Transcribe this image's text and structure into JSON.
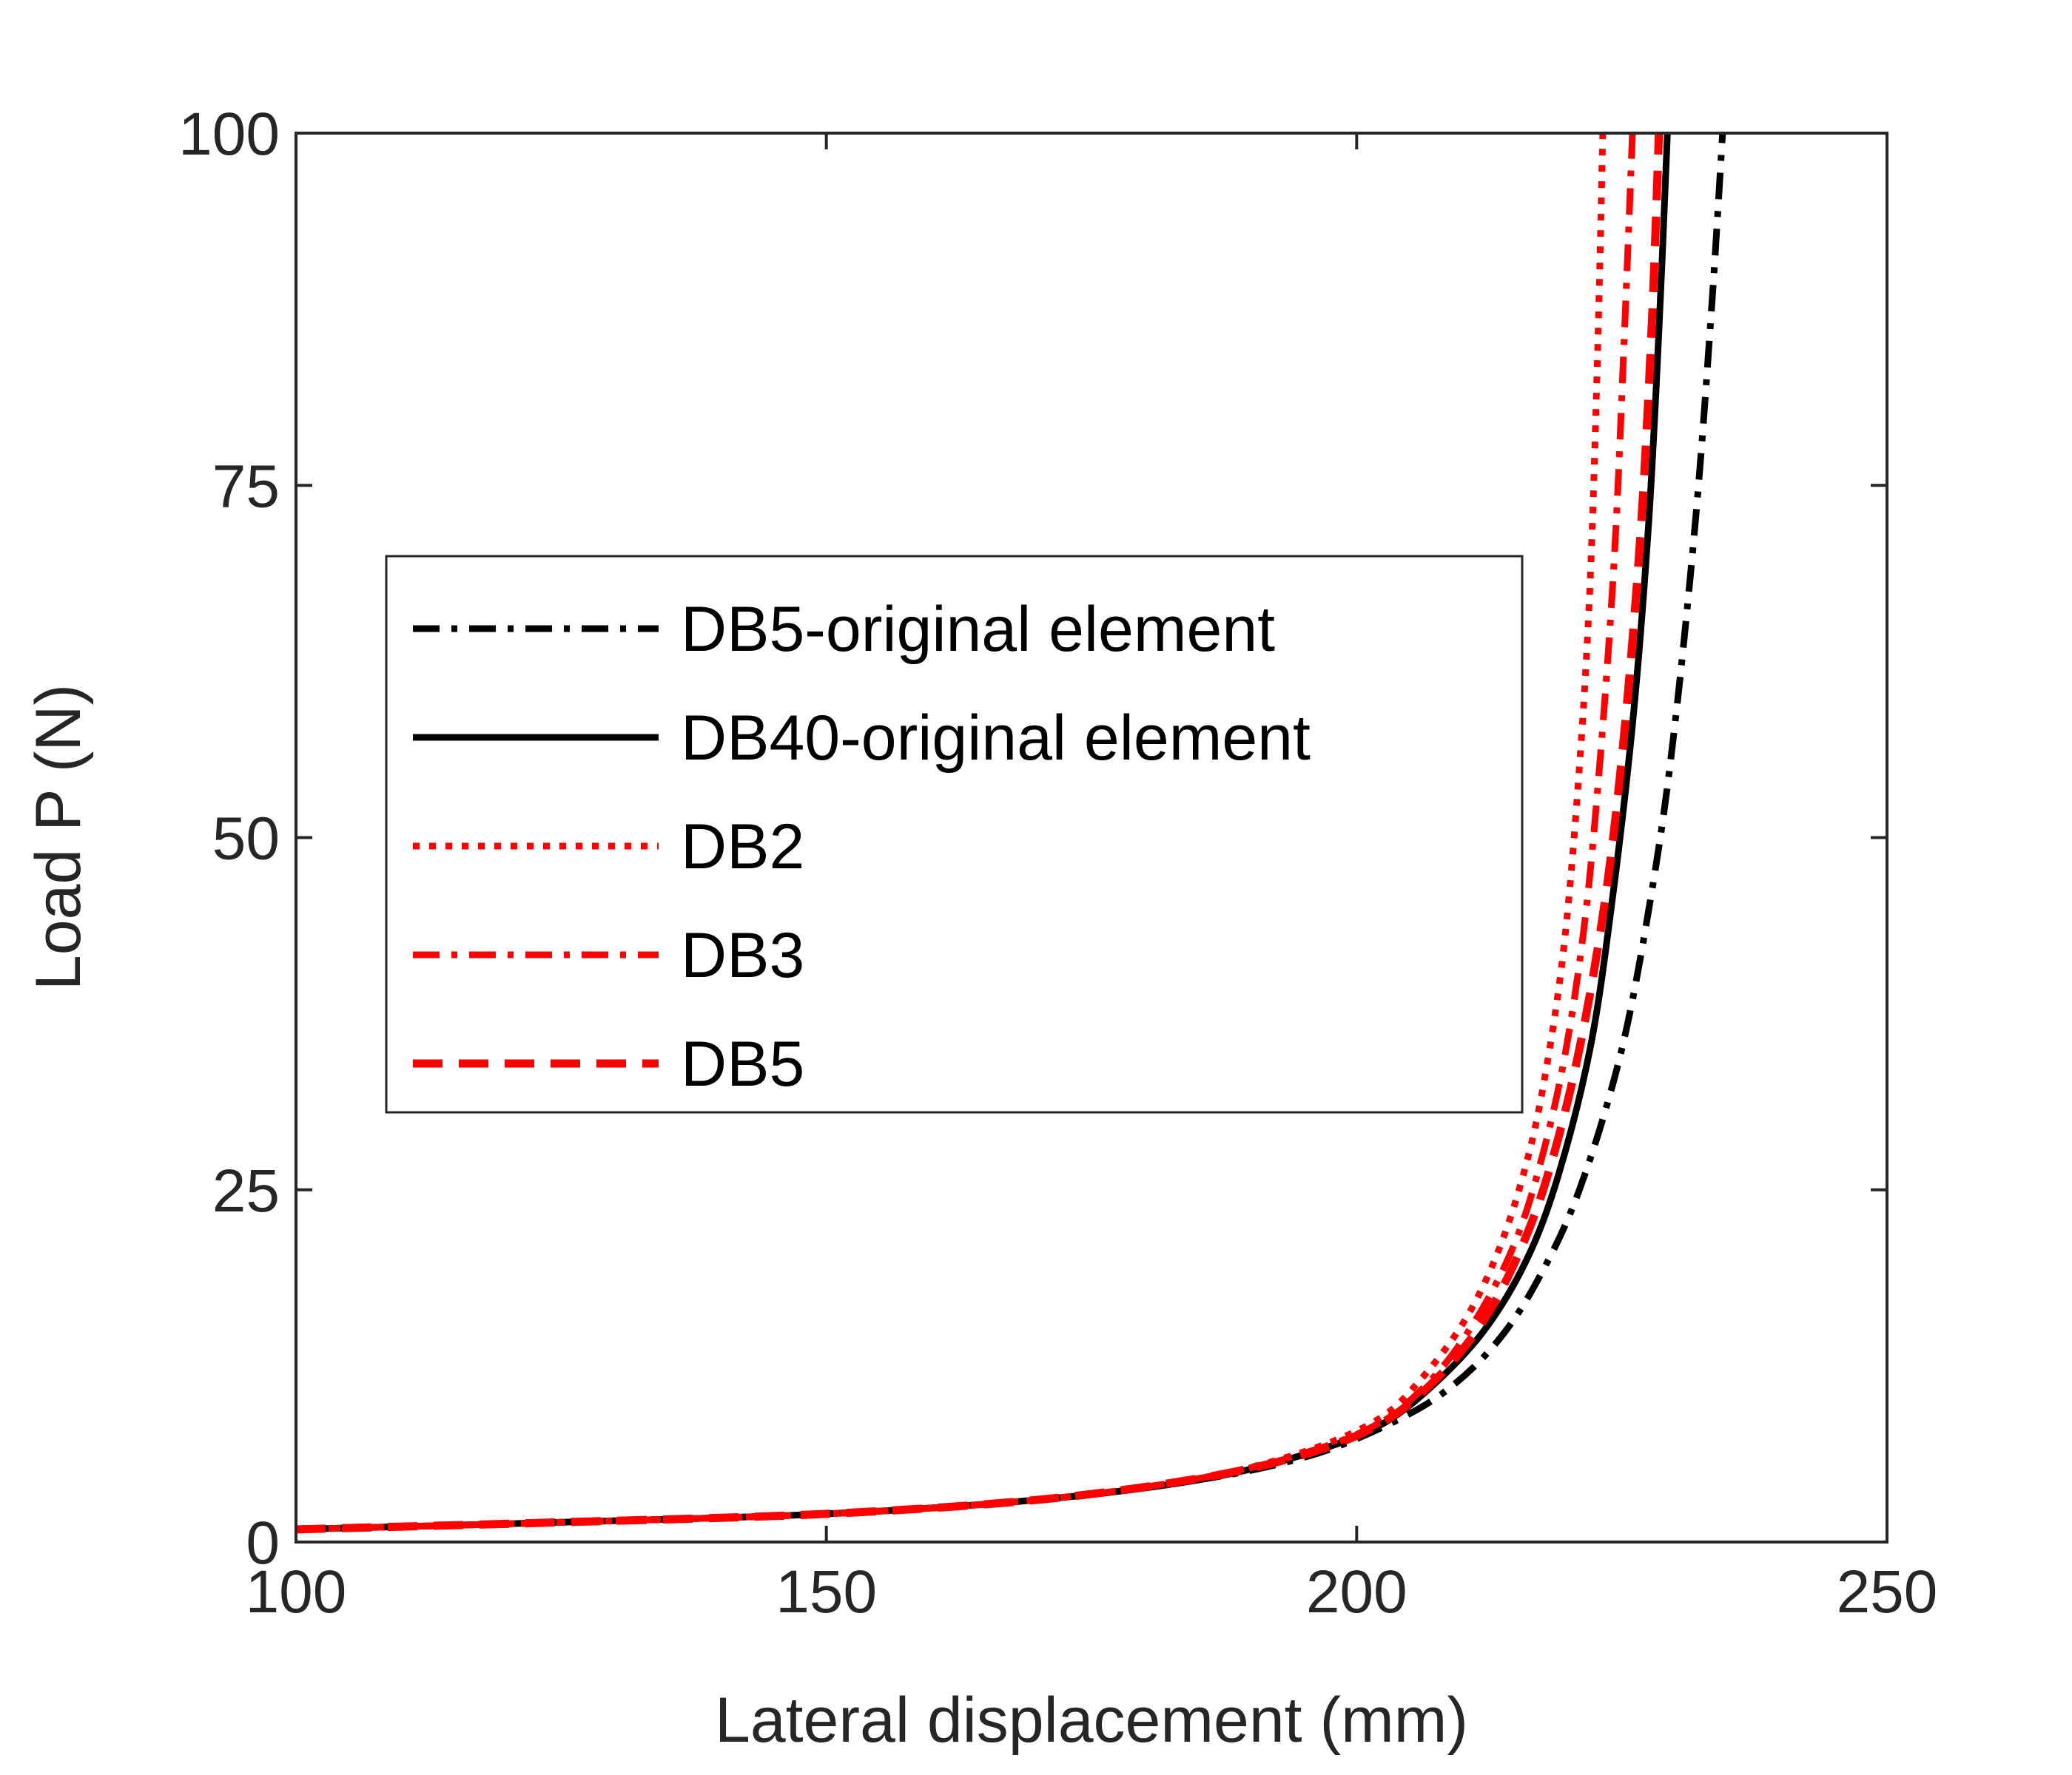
{
  "chart_data": {
    "type": "line",
    "title": "",
    "xlabel": "Lateral displacement (mm)",
    "ylabel": "Load P (N)",
    "xlim": [
      100,
      250
    ],
    "ylim": [
      0,
      100
    ],
    "xticks": [
      100,
      150,
      200,
      250
    ],
    "yticks": [
      0,
      25,
      50,
      75,
      100
    ],
    "grid": false,
    "legend_position": "center-left",
    "series": [
      {
        "name": "DB5-original element",
        "color": "#000000",
        "style": "dash-dot",
        "x": [
          100,
          125,
          150,
          170,
          185,
          195,
          202,
          208,
          213,
          217,
          221,
          225,
          228,
          230,
          232,
          233.5,
          234.5
        ],
        "y": [
          0.9,
          1.4,
          2.0,
          3.0,
          4.4,
          6.0,
          8.0,
          10.5,
          14.0,
          18.5,
          25.0,
          35.0,
          47.0,
          58.0,
          73.0,
          88.0,
          100.0
        ]
      },
      {
        "name": "DB40-original element",
        "color": "#000000",
        "style": "solid",
        "x": [
          100,
          125,
          150,
          170,
          185,
          195,
          202,
          207,
          212,
          216,
          219,
          222,
          224,
          226,
          227.5,
          228.5,
          229.3
        ],
        "y": [
          0.9,
          1.4,
          2.0,
          3.0,
          4.4,
          6.2,
          8.2,
          11.0,
          15.0,
          20.0,
          26.0,
          35.0,
          45.0,
          58.0,
          72.0,
          86.0,
          100.0
        ]
      },
      {
        "name": "DB2",
        "color": "#ff0000",
        "style": "dotted",
        "x": [
          100,
          125,
          150,
          170,
          185,
          195,
          202,
          206,
          210,
          213,
          215.5,
          217.5,
          219.5,
          221,
          222,
          222.7,
          223.2
        ],
        "y": [
          0.9,
          1.4,
          2.0,
          3.0,
          4.5,
          6.4,
          8.7,
          11.5,
          15.5,
          20.0,
          25.5,
          32.0,
          42.0,
          55.0,
          68.0,
          84.0,
          100.0
        ]
      },
      {
        "name": "DB3",
        "color": "#ff0000",
        "style": "dash-dot",
        "x": [
          100,
          125,
          150,
          170,
          185,
          195,
          202,
          207,
          211,
          214.5,
          217,
          219.5,
          221.5,
          223,
          224.3,
          225.2,
          226
        ],
        "y": [
          0.9,
          1.4,
          2.0,
          3.0,
          4.5,
          6.3,
          8.4,
          11.5,
          15.5,
          20.5,
          26.0,
          34.0,
          44.0,
          56.0,
          70.0,
          85.0,
          100.0
        ]
      },
      {
        "name": "DB5",
        "color": "#ff0000",
        "style": "dashed",
        "x": [
          100,
          125,
          150,
          170,
          185,
          195,
          202,
          207,
          211.5,
          215,
          218,
          221,
          223.5,
          225.3,
          226.8,
          227.8,
          228.5
        ],
        "y": [
          0.9,
          1.4,
          2.0,
          3.0,
          4.5,
          6.2,
          8.3,
          11.2,
          15.2,
          20.0,
          26.0,
          35.0,
          46.0,
          58.0,
          72.0,
          86.0,
          100.0
        ]
      }
    ]
  }
}
